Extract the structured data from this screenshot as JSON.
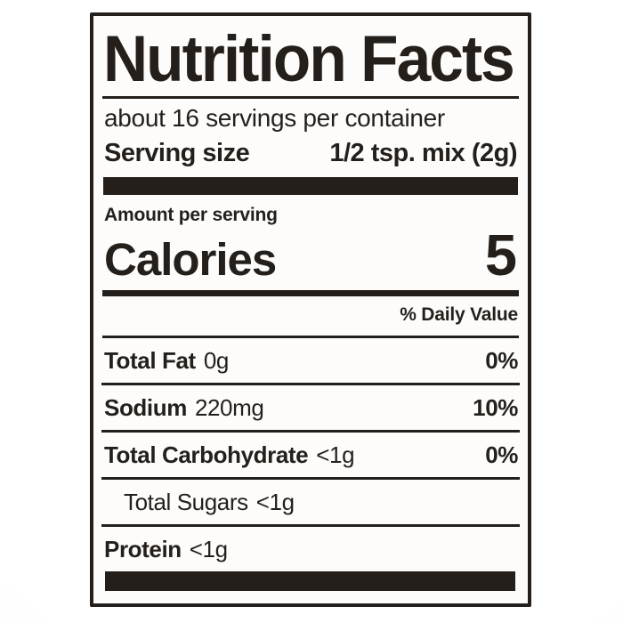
{
  "colors": {
    "ink": "#241f1b",
    "label-bg": "#fdfcfa",
    "page-bg": "#ffffff"
  },
  "label": {
    "title": "Nutrition Facts",
    "servings_per_container": "about 16 servings per container",
    "serving_size_label": "Serving size",
    "serving_size_value": "1/2 tsp. mix (2g)",
    "amount_per_serving": "Amount per serving",
    "calories_label": "Calories",
    "calories_value": "5",
    "daily_value_header": "% Daily Value",
    "rows": [
      {
        "name": "Total Fat",
        "amount": "0g",
        "dv": "0%"
      },
      {
        "name": "Sodium",
        "amount": "220mg",
        "dv": "10%"
      },
      {
        "name": "Total Carbohydrate",
        "amount": "<1g",
        "dv": "0%"
      },
      {
        "name": "Total Sugars",
        "amount": "<1g",
        "dv": ""
      },
      {
        "name": "Protein",
        "amount": "<1g",
        "dv": ""
      }
    ]
  }
}
